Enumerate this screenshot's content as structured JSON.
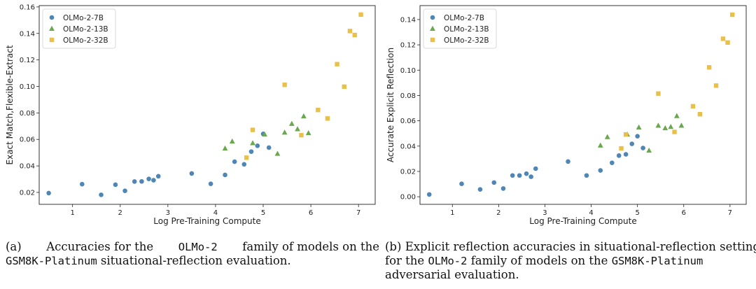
{
  "colors": {
    "OLMo-2-7B": "#4f86b6",
    "OLMo-2-13B": "#6aa84f",
    "OLMo-2-32B": "#e8c04a"
  },
  "chart_data": [
    {
      "type": "scatter",
      "xlabel": "Log Pre-Training Compute",
      "ylabel": "Exact Match,Flexible-Extract",
      "xlim": [
        0.3,
        7.35
      ],
      "ylim": [
        0.011,
        0.161
      ],
      "xticks": [
        1,
        2,
        3,
        4,
        5,
        6,
        7
      ],
      "yticks": [
        0.02,
        0.04,
        0.06,
        0.08,
        0.1,
        0.12,
        0.14,
        0.16
      ],
      "legend": "top-left",
      "series": [
        {
          "name": "OLMo-2-7B",
          "marker": "circle",
          "points": [
            [
              0.5,
              0.0195
            ],
            [
              1.2,
              0.0262
            ],
            [
              1.6,
              0.0182
            ],
            [
              1.9,
              0.0258
            ],
            [
              2.1,
              0.0212
            ],
            [
              2.3,
              0.0282
            ],
            [
              2.45,
              0.0283
            ],
            [
              2.6,
              0.0302
            ],
            [
              2.7,
              0.0292
            ],
            [
              2.8,
              0.0322
            ],
            [
              3.5,
              0.0343
            ],
            [
              3.9,
              0.0265
            ],
            [
              4.2,
              0.0332
            ],
            [
              4.4,
              0.0432
            ],
            [
              4.6,
              0.0412
            ],
            [
              4.75,
              0.0508
            ],
            [
              4.88,
              0.0552
            ],
            [
              5.0,
              0.0642
            ],
            [
              5.12,
              0.0538
            ]
          ]
        },
        {
          "name": "OLMo-2-13B",
          "marker": "triangle",
          "points": [
            [
              4.2,
              0.0532
            ],
            [
              4.35,
              0.0585
            ],
            [
              4.78,
              0.0572
            ],
            [
              5.03,
              0.0638
            ],
            [
              5.3,
              0.0492
            ],
            [
              5.45,
              0.0652
            ],
            [
              5.6,
              0.0718
            ],
            [
              5.72,
              0.0678
            ],
            [
              5.85,
              0.0775
            ],
            [
              5.95,
              0.0648
            ]
          ]
        },
        {
          "name": "OLMo-2-32B",
          "marker": "square",
          "points": [
            [
              4.65,
              0.0462
            ],
            [
              4.78,
              0.0672
            ],
            [
              5.45,
              0.1012
            ],
            [
              5.8,
              0.0632
            ],
            [
              6.15,
              0.0822
            ],
            [
              6.35,
              0.0758
            ],
            [
              6.55,
              0.1168
            ],
            [
              6.7,
              0.0998
            ],
            [
              6.82,
              0.1418
            ],
            [
              6.92,
              0.1388
            ],
            [
              7.05,
              0.1542
            ]
          ]
        }
      ]
    },
    {
      "type": "scatter",
      "xlabel": "Log Pre-Training Compute",
      "ylabel": "Accurate Explicit Reflection",
      "xlim": [
        0.3,
        7.35
      ],
      "ylim": [
        -0.006,
        0.151
      ],
      "xticks": [
        1,
        2,
        3,
        4,
        5,
        6,
        7
      ],
      "yticks": [
        0.0,
        0.02,
        0.04,
        0.06,
        0.08,
        0.1,
        0.12,
        0.14
      ],
      "legend": "top-left",
      "series": [
        {
          "name": "OLMo-2-7B",
          "marker": "circle",
          "points": [
            [
              0.5,
              0.0018
            ],
            [
              1.2,
              0.0102
            ],
            [
              1.6,
              0.0058
            ],
            [
              1.9,
              0.0112
            ],
            [
              2.1,
              0.0065
            ],
            [
              2.3,
              0.0168
            ],
            [
              2.45,
              0.0168
            ],
            [
              2.6,
              0.0182
            ],
            [
              2.7,
              0.0158
            ],
            [
              2.8,
              0.0222
            ],
            [
              3.5,
              0.0278
            ],
            [
              3.9,
              0.0168
            ],
            [
              4.2,
              0.0208
            ],
            [
              4.45,
              0.0268
            ],
            [
              4.6,
              0.0325
            ],
            [
              4.75,
              0.0335
            ],
            [
              4.88,
              0.0418
            ],
            [
              5.0,
              0.0478
            ],
            [
              5.12,
              0.0385
            ]
          ]
        },
        {
          "name": "OLMo-2-13B",
          "marker": "triangle",
          "points": [
            [
              4.2,
              0.0405
            ],
            [
              4.35,
              0.0472
            ],
            [
              4.78,
              0.0492
            ],
            [
              5.03,
              0.0548
            ],
            [
              5.25,
              0.0365
            ],
            [
              5.45,
              0.0562
            ],
            [
              5.6,
              0.0542
            ],
            [
              5.72,
              0.0552
            ],
            [
              5.85,
              0.0638
            ],
            [
              5.95,
              0.0562
            ]
          ]
        },
        {
          "name": "OLMo-2-32B",
          "marker": "square",
          "points": [
            [
              4.65,
              0.0382
            ],
            [
              4.75,
              0.0492
            ],
            [
              5.45,
              0.0815
            ],
            [
              5.8,
              0.0512
            ],
            [
              6.2,
              0.0715
            ],
            [
              6.35,
              0.0652
            ],
            [
              6.55,
              0.1022
            ],
            [
              6.7,
              0.0878
            ],
            [
              6.85,
              0.1248
            ],
            [
              6.95,
              0.1218
            ],
            [
              7.05,
              0.1438
            ]
          ]
        }
      ]
    }
  ],
  "captions": {
    "a": {
      "label": "(a)",
      "text1": "Accuracies for the",
      "model": "OLMo-2",
      "text2": "family of models on the",
      "bench": "GSM8K-Platinum",
      "text3": "situational-reflection evaluation."
    },
    "b": {
      "label": "(b)",
      "text1": "Explicit reflection accuracies in situational-reflection setting",
      "text2": "for the",
      "model": "OLMo-2",
      "text3": "family of models on the",
      "bench": "GSM8K-Platinum",
      "text4": "adversarial evaluation."
    }
  }
}
